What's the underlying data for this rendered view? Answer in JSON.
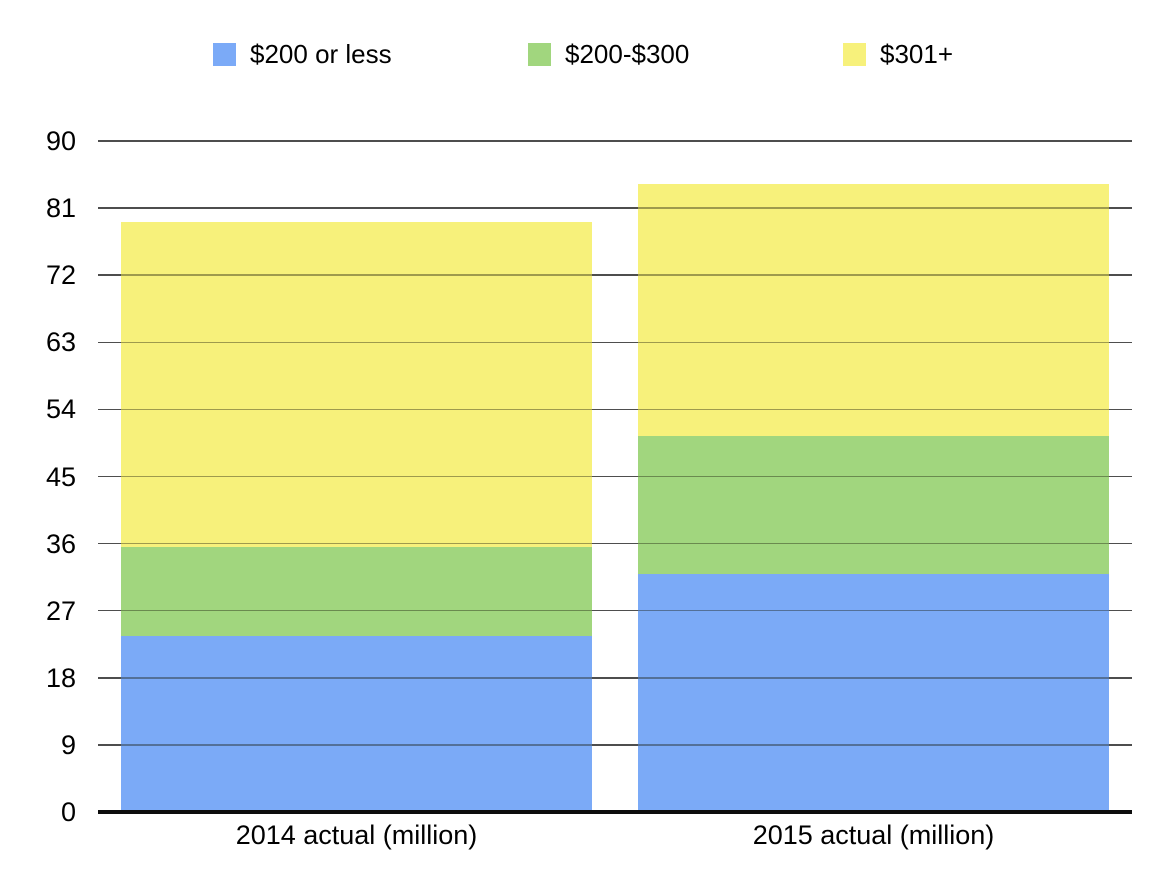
{
  "chart_data": {
    "type": "bar",
    "stacked": true,
    "title": "",
    "xlabel": "",
    "ylabel": "",
    "categories": [
      "2014 actual (million)",
      "2015 actual (million)"
    ],
    "series": [
      {
        "name": "$200 or less",
        "color": "#7BAAF7",
        "values": [
          23.6,
          31.9
        ]
      },
      {
        "name": "$200-$300",
        "color": "#A1D67E",
        "values": [
          12.0,
          18.6
        ]
      },
      {
        "name": "$301+",
        "color": "#F7F17B",
        "values": [
          43.5,
          33.7
        ]
      }
    ],
    "ylim": [
      0,
      90
    ],
    "yticks": [
      0,
      9,
      18,
      27,
      36,
      45,
      54,
      63,
      72,
      81,
      90
    ],
    "grid": true,
    "legend_position": "top",
    "colors": {
      "gridline": "#4E4E4E",
      "axis_baseline": "#0D0D0D",
      "text": "#000000",
      "background": "#FFFFFF"
    }
  }
}
